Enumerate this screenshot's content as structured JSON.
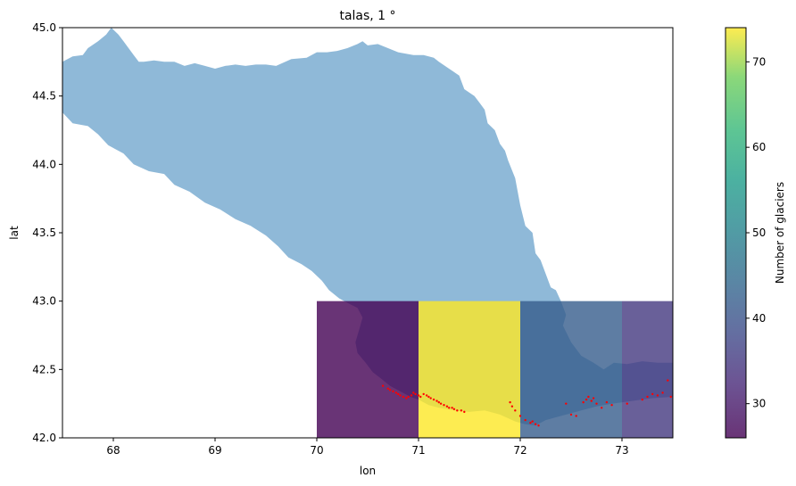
{
  "chart_data": {
    "type": "heatmap",
    "title": "talas, 1 °",
    "xlabel": "lon",
    "ylabel": "lat",
    "xlim": [
      67.5,
      73.5
    ],
    "ylim": [
      42.0,
      45.0
    ],
    "xticks": [
      68,
      69,
      70,
      71,
      72,
      73
    ],
    "yticks": [
      42.0,
      42.5,
      43.0,
      43.5,
      44.0,
      44.5,
      45.0
    ],
    "grid": false,
    "cells": [
      {
        "lon": [
          70,
          71
        ],
        "lat": [
          42,
          43
        ],
        "count": 26
      },
      {
        "lon": [
          71,
          72
        ],
        "lat": [
          42,
          43
        ],
        "count": 74
      },
      {
        "lon": [
          72,
          73
        ],
        "lat": [
          42,
          43
        ],
        "count": 42
      },
      {
        "lon": [
          73,
          74
        ],
        "lat": [
          42,
          43
        ],
        "count": 35
      }
    ],
    "colorbar": {
      "label": "Number of glaciers",
      "range": [
        26,
        74
      ],
      "ticks": [
        30,
        40,
        50,
        60,
        70
      ],
      "colormap": "viridis"
    },
    "basin": {
      "color": "#8fb9d8",
      "outline": [
        [
          67.5,
          44.38
        ],
        [
          67.6,
          44.3
        ],
        [
          67.75,
          44.28
        ],
        [
          67.85,
          44.22
        ],
        [
          67.95,
          44.14
        ],
        [
          68.1,
          44.08
        ],
        [
          68.2,
          44.0
        ],
        [
          68.35,
          43.95
        ],
        [
          68.5,
          43.93
        ],
        [
          68.6,
          43.85
        ],
        [
          68.75,
          43.8
        ],
        [
          68.9,
          43.72
        ],
        [
          69.05,
          43.67
        ],
        [
          69.2,
          43.6
        ],
        [
          69.35,
          43.55
        ],
        [
          69.5,
          43.48
        ],
        [
          69.62,
          43.4
        ],
        [
          69.72,
          43.32
        ],
        [
          69.85,
          43.27
        ],
        [
          69.95,
          43.22
        ],
        [
          70.05,
          43.15
        ],
        [
          70.12,
          43.08
        ],
        [
          70.22,
          43.02
        ],
        [
          70.32,
          42.98
        ],
        [
          70.4,
          42.95
        ],
        [
          70.45,
          42.88
        ],
        [
          70.42,
          42.8
        ],
        [
          70.38,
          42.7
        ],
        [
          70.4,
          42.62
        ],
        [
          70.48,
          42.55
        ],
        [
          70.55,
          42.48
        ],
        [
          70.62,
          42.44
        ],
        [
          70.72,
          42.38
        ],
        [
          70.82,
          42.34
        ],
        [
          70.92,
          42.3
        ],
        [
          71.0,
          42.28
        ],
        [
          71.1,
          42.24
        ],
        [
          71.2,
          42.22
        ],
        [
          71.35,
          42.2
        ],
        [
          71.5,
          42.19
        ],
        [
          71.65,
          42.2
        ],
        [
          71.8,
          42.17
        ],
        [
          71.95,
          42.12
        ],
        [
          72.05,
          42.1
        ],
        [
          72.15,
          42.09
        ],
        [
          72.25,
          42.13
        ],
        [
          72.35,
          42.15
        ],
        [
          72.45,
          42.17
        ],
        [
          72.6,
          42.2
        ],
        [
          72.75,
          42.23
        ],
        [
          72.9,
          42.25
        ],
        [
          73.1,
          42.27
        ],
        [
          73.3,
          42.29
        ],
        [
          73.5,
          42.3
        ],
        [
          73.5,
          42.55
        ],
        [
          73.35,
          42.55
        ],
        [
          73.2,
          42.56
        ],
        [
          73.05,
          42.54
        ],
        [
          72.92,
          42.55
        ],
        [
          72.82,
          42.5
        ],
        [
          72.72,
          42.55
        ],
        [
          72.6,
          42.6
        ],
        [
          72.5,
          42.7
        ],
        [
          72.42,
          42.82
        ],
        [
          72.45,
          42.9
        ],
        [
          72.4,
          43.0
        ],
        [
          72.35,
          43.08
        ],
        [
          72.3,
          43.1
        ],
        [
          72.25,
          43.2
        ],
        [
          72.2,
          43.3
        ],
        [
          72.15,
          43.35
        ],
        [
          72.12,
          43.5
        ],
        [
          72.05,
          43.55
        ],
        [
          72.0,
          43.7
        ],
        [
          71.95,
          43.9
        ],
        [
          71.88,
          44.03
        ],
        [
          71.85,
          44.1
        ],
        [
          71.8,
          44.15
        ],
        [
          71.75,
          44.25
        ],
        [
          71.68,
          44.3
        ],
        [
          71.65,
          44.4
        ],
        [
          71.6,
          44.45
        ],
        [
          71.55,
          44.5
        ],
        [
          71.45,
          44.55
        ],
        [
          71.4,
          44.65
        ],
        [
          71.3,
          44.7
        ],
        [
          71.2,
          44.75
        ],
        [
          71.15,
          44.78
        ],
        [
          71.05,
          44.8
        ],
        [
          70.95,
          44.8
        ],
        [
          70.8,
          44.82
        ],
        [
          70.7,
          44.85
        ],
        [
          70.6,
          44.88
        ],
        [
          70.5,
          44.87
        ],
        [
          70.45,
          44.9
        ],
        [
          70.4,
          44.88
        ],
        [
          70.3,
          44.85
        ],
        [
          70.2,
          44.83
        ],
        [
          70.1,
          44.82
        ],
        [
          70.0,
          44.82
        ],
        [
          69.9,
          44.78
        ],
        [
          69.75,
          44.77
        ],
        [
          69.6,
          44.72
        ],
        [
          69.5,
          44.73
        ],
        [
          69.4,
          44.73
        ],
        [
          69.3,
          44.72
        ],
        [
          69.2,
          44.73
        ],
        [
          69.1,
          44.72
        ],
        [
          69.0,
          44.7
        ],
        [
          68.9,
          44.72
        ],
        [
          68.8,
          44.74
        ],
        [
          68.7,
          44.72
        ],
        [
          68.6,
          44.75
        ],
        [
          68.5,
          44.75
        ],
        [
          68.4,
          44.76
        ],
        [
          68.3,
          44.75
        ],
        [
          68.25,
          44.75
        ],
        [
          68.2,
          44.8
        ],
        [
          68.15,
          44.85
        ],
        [
          68.1,
          44.9
        ],
        [
          68.05,
          44.95
        ],
        [
          67.98,
          45.0
        ],
        [
          67.93,
          44.95
        ],
        [
          67.85,
          44.9
        ],
        [
          67.75,
          44.85
        ],
        [
          67.7,
          44.8
        ],
        [
          67.6,
          44.79
        ],
        [
          67.5,
          44.75
        ]
      ]
    },
    "glacier_color": "#ff0000",
    "glaciers": [
      [
        70.65,
        42.38
      ],
      [
        70.7,
        42.36
      ],
      [
        70.72,
        42.35
      ],
      [
        70.75,
        42.34
      ],
      [
        70.78,
        42.33
      ],
      [
        70.8,
        42.32
      ],
      [
        70.82,
        42.31
      ],
      [
        70.85,
        42.3
      ],
      [
        70.88,
        42.29
      ],
      [
        70.9,
        42.3
      ],
      [
        70.93,
        42.31
      ],
      [
        70.95,
        42.33
      ],
      [
        70.97,
        42.32
      ],
      [
        71.0,
        42.31
      ],
      [
        71.02,
        42.3
      ],
      [
        71.05,
        42.32
      ],
      [
        71.08,
        42.31
      ],
      [
        71.1,
        42.3
      ],
      [
        71.12,
        42.29
      ],
      [
        71.15,
        42.28
      ],
      [
        71.18,
        42.27
      ],
      [
        71.2,
        42.26
      ],
      [
        71.22,
        42.25
      ],
      [
        71.25,
        42.24
      ],
      [
        71.28,
        42.23
      ],
      [
        71.3,
        42.22
      ],
      [
        71.33,
        42.22
      ],
      [
        71.35,
        42.21
      ],
      [
        71.38,
        42.2
      ],
      [
        71.42,
        42.2
      ],
      [
        71.45,
        42.19
      ],
      [
        71.9,
        42.26
      ],
      [
        71.92,
        42.23
      ],
      [
        71.95,
        42.2
      ],
      [
        72.0,
        42.16
      ],
      [
        72.05,
        42.13
      ],
      [
        72.1,
        42.11
      ],
      [
        72.12,
        42.12
      ],
      [
        72.15,
        42.1
      ],
      [
        72.18,
        42.09
      ],
      [
        72.45,
        42.25
      ],
      [
        72.5,
        42.17
      ],
      [
        72.55,
        42.16
      ],
      [
        72.62,
        42.26
      ],
      [
        72.65,
        42.28
      ],
      [
        72.67,
        42.3
      ],
      [
        72.7,
        42.27
      ],
      [
        72.72,
        42.29
      ],
      [
        72.75,
        42.25
      ],
      [
        72.8,
        42.22
      ],
      [
        72.85,
        42.26
      ],
      [
        72.9,
        42.24
      ],
      [
        73.05,
        42.25
      ],
      [
        73.2,
        42.28
      ],
      [
        73.25,
        42.3
      ],
      [
        73.3,
        42.32
      ],
      [
        73.35,
        42.31
      ],
      [
        73.4,
        42.33
      ],
      [
        73.45,
        42.42
      ],
      [
        73.48,
        42.3
      ]
    ]
  }
}
